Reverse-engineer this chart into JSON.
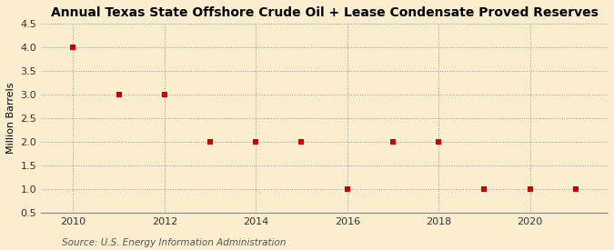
{
  "title": "Annual Texas State Offshore Crude Oil + Lease Condensate Proved Reserves",
  "ylabel": "Million Barrels",
  "source": "Source: U.S. Energy Information Administration",
  "years": [
    2010,
    2011,
    2012,
    2013,
    2014,
    2015,
    2016,
    2017,
    2018,
    2019,
    2020,
    2021
  ],
  "values": [
    4.0,
    3.0,
    3.0,
    2.0,
    2.0,
    2.0,
    1.0,
    2.0,
    2.0,
    1.0,
    1.0,
    1.0
  ],
  "ylim": [
    0.5,
    4.5
  ],
  "xlim": [
    2009.3,
    2021.7
  ],
  "yticks": [
    0.5,
    1.0,
    1.5,
    2.0,
    2.5,
    3.0,
    3.5,
    4.0,
    4.5
  ],
  "xticks": [
    2010,
    2012,
    2014,
    2016,
    2018,
    2020
  ],
  "marker_color": "#cc0000",
  "marker_size": 4,
  "background_color": "#faeece",
  "grid_color": "#999999",
  "title_fontsize": 10,
  "label_fontsize": 8,
  "tick_fontsize": 8,
  "source_fontsize": 7.5
}
